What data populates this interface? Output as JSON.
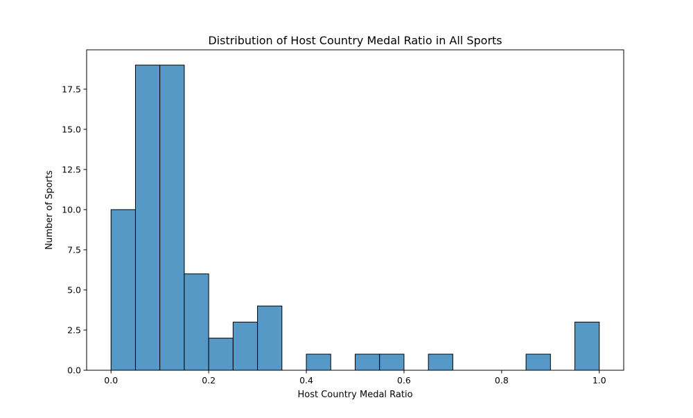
{
  "chart_data": {
    "type": "bar",
    "title": "Distribution of Host Country Medal Ratio in All Sports",
    "xlabel": "Host Country Medal Ratio",
    "ylabel": "Number of Sports",
    "bin_edges": [
      0.0,
      0.05,
      0.1,
      0.15,
      0.2,
      0.25,
      0.3,
      0.35,
      0.4,
      0.45,
      0.5,
      0.55,
      0.6,
      0.65,
      0.7,
      0.75,
      0.8,
      0.85,
      0.9,
      0.95,
      1.0
    ],
    "values": [
      10,
      19,
      19,
      6,
      2,
      3,
      4,
      0,
      1,
      0,
      1,
      1,
      0,
      1,
      0,
      0,
      0,
      1,
      0,
      3
    ],
    "xlim": [
      -0.05,
      1.05
    ],
    "ylim": [
      0,
      19.95
    ],
    "xticks": [
      "0.0",
      "0.2",
      "0.4",
      "0.6",
      "0.8",
      "1.0"
    ],
    "yticks": [
      "0.0",
      "2.5",
      "5.0",
      "7.5",
      "10.0",
      "12.5",
      "15.0",
      "17.5"
    ],
    "bar_color": "#5799c6",
    "edge_color": "#000000",
    "grid": false,
    "legend": "none"
  }
}
